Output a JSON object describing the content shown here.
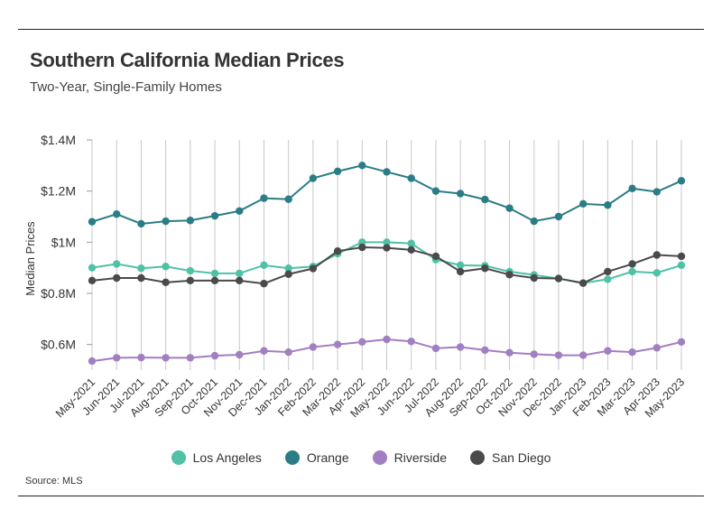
{
  "header": {
    "title": "Southern California Median Prices",
    "subtitle": "Two-Year, Single-Family Homes"
  },
  "footer": {
    "source": "Source: MLS"
  },
  "chart_data": {
    "type": "line",
    "title": "Southern California Median Prices",
    "subtitle": "Two-Year, Single-Family Homes",
    "xlabel": "",
    "ylabel": "Median Prices",
    "ylim": [
      0.5,
      1.4
    ],
    "yticks": [
      0.6,
      0.8,
      1.0,
      1.2,
      1.4
    ],
    "ytick_labels": [
      "$0.6M",
      "$0.8M",
      "$1M",
      "$1.2M",
      "$1.4M"
    ],
    "grid": "vertical",
    "legend_position": "bottom-center",
    "categories": [
      "May-2021",
      "Jun-2021",
      "Jul-2021",
      "Aug-2021",
      "Sep-2021",
      "Oct-2021",
      "Nov-2021",
      "Dec-2021",
      "Jan-2022",
      "Feb-2022",
      "Mar-2022",
      "Apr-2022",
      "May-2022",
      "Jun-2022",
      "Jul-2022",
      "Aug-2022",
      "Sep-2022",
      "Oct-2022",
      "Nov-2022",
      "Dec-2022",
      "Jan-2023",
      "Feb-2023",
      "Mar-2023",
      "Apr-2023",
      "May-2023"
    ],
    "series": [
      {
        "name": "Los Angeles",
        "color": "#4fc1a6",
        "values": [
          0.9,
          0.915,
          0.898,
          0.905,
          0.888,
          0.878,
          0.878,
          0.91,
          0.898,
          0.905,
          0.955,
          1.0,
          1.0,
          0.995,
          0.932,
          0.91,
          0.908,
          0.885,
          0.872,
          0.858,
          0.84,
          0.855,
          0.885,
          0.88,
          0.91
        ]
      },
      {
        "name": "Orange",
        "color": "#2b7d85",
        "values": [
          1.08,
          1.11,
          1.072,
          1.082,
          1.085,
          1.103,
          1.122,
          1.172,
          1.168,
          1.25,
          1.277,
          1.3,
          1.275,
          1.25,
          1.2,
          1.19,
          1.167,
          1.133,
          1.082,
          1.1,
          1.15,
          1.145,
          1.21,
          1.197,
          1.24
        ]
      },
      {
        "name": "Riverside",
        "color": "#a27fc0",
        "values": [
          0.535,
          0.548,
          0.549,
          0.548,
          0.548,
          0.556,
          0.56,
          0.575,
          0.57,
          0.59,
          0.6,
          0.61,
          0.62,
          0.612,
          0.585,
          0.59,
          0.578,
          0.568,
          0.562,
          0.558,
          0.558,
          0.575,
          0.57,
          0.587,
          0.61
        ]
      },
      {
        "name": "San Diego",
        "color": "#4a4a4a",
        "values": [
          0.85,
          0.86,
          0.86,
          0.843,
          0.85,
          0.85,
          0.85,
          0.838,
          0.875,
          0.897,
          0.965,
          0.98,
          0.978,
          0.97,
          0.945,
          0.885,
          0.898,
          0.873,
          0.86,
          0.858,
          0.84,
          0.885,
          0.915,
          0.95,
          0.945
        ]
      }
    ]
  }
}
